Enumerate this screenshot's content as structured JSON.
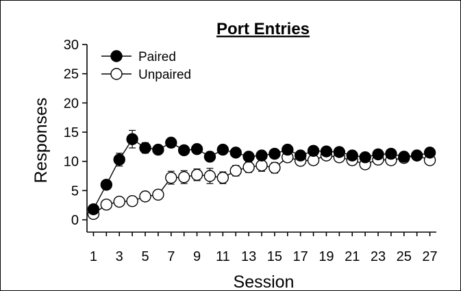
{
  "chart_data": {
    "type": "line",
    "title": "Port Entries",
    "xlabel": "Session",
    "ylabel": "Responses",
    "x": [
      1,
      2,
      3,
      4,
      5,
      6,
      7,
      8,
      9,
      10,
      11,
      12,
      13,
      14,
      15,
      16,
      17,
      18,
      19,
      20,
      21,
      22,
      23,
      24,
      25,
      26,
      27
    ],
    "x_ticks": [
      1,
      3,
      5,
      7,
      9,
      11,
      13,
      15,
      17,
      19,
      21,
      23,
      25,
      27
    ],
    "x_tick_labels": [
      "1",
      "3",
      "5",
      "7",
      "9",
      "11",
      "13",
      "15",
      "17",
      "19",
      "21",
      "23",
      "25",
      "27"
    ],
    "ylim": [
      0,
      30
    ],
    "y_ticks": [
      0,
      5,
      10,
      15,
      20,
      25,
      30
    ],
    "y_tick_labels": [
      "0",
      "5",
      "10",
      "15",
      "20",
      "25",
      "30"
    ],
    "grid": false,
    "legend_position": "top-left",
    "series": [
      {
        "name": "Paired",
        "marker": "filled-circle",
        "color": "#000000",
        "values": [
          1.8,
          6.0,
          10.3,
          13.8,
          12.3,
          12.0,
          13.2,
          11.9,
          12.1,
          10.8,
          12.0,
          11.5,
          10.8,
          11.0,
          11.3,
          12.0,
          11.0,
          11.8,
          11.7,
          11.6,
          11.0,
          10.7,
          11.2,
          11.3,
          10.8,
          11.0,
          11.5
        ],
        "errors": [
          0.4,
          0.6,
          1.1,
          1.5,
          0.9,
          0.7,
          0.8,
          0.6,
          0.6,
          0.8,
          0.7,
          0.6,
          0.6,
          0.6,
          0.6,
          0.6,
          0.6,
          0.6,
          0.6,
          0.6,
          0.6,
          0.6,
          0.6,
          0.6,
          0.6,
          0.5,
          0.6
        ]
      },
      {
        "name": "Unpaired",
        "marker": "open-circle",
        "color": "#ffffff",
        "values": [
          1.0,
          2.6,
          3.1,
          3.2,
          4.0,
          4.3,
          7.2,
          7.3,
          7.7,
          7.5,
          7.2,
          8.4,
          9.0,
          9.3,
          8.9,
          10.7,
          10.1,
          10.2,
          11.0,
          10.7,
          10.2,
          9.5,
          10.3,
          10.2,
          10.6,
          11.0,
          10.2
        ],
        "errors": [
          0.3,
          0.4,
          0.4,
          0.5,
          0.5,
          0.6,
          1.1,
          1.1,
          1.0,
          1.3,
          1.0,
          0.9,
          0.9,
          1.0,
          0.9,
          0.8,
          0.8,
          0.8,
          0.7,
          0.7,
          0.8,
          0.7,
          0.7,
          0.7,
          0.6,
          0.6,
          0.7
        ]
      }
    ]
  }
}
